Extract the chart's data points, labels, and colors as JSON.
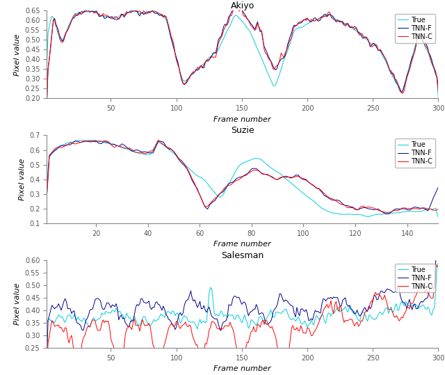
{
  "title1": "Akiyo",
  "title2": "Suzie",
  "title3": "Salesman",
  "xlabel": "Frame number",
  "ylabel": "Pixel value",
  "legend_labels": [
    "True",
    "TNN-F",
    "TNN-C"
  ],
  "colors": [
    "#00CCDD",
    "#00008B",
    "#FF0000"
  ],
  "linewidth": 0.7,
  "fig_width": 6.4,
  "fig_height": 5.39,
  "akiyo_xlim": [
    1,
    300
  ],
  "akiyo_ylim": [
    0.2,
    0.65
  ],
  "akiyo_yticks": [
    0.2,
    0.25,
    0.3,
    0.35,
    0.4,
    0.45,
    0.5,
    0.55,
    0.6,
    0.65
  ],
  "akiyo_xticks": [
    50,
    100,
    150,
    200,
    250,
    300
  ],
  "suzie_xlim": [
    1,
    152
  ],
  "suzie_ylim": [
    0.1,
    0.7
  ],
  "suzie_yticks": [
    0.1,
    0.2,
    0.3,
    0.4,
    0.5,
    0.6,
    0.7
  ],
  "suzie_xticks": [
    20,
    40,
    60,
    80,
    100,
    120,
    140
  ],
  "salesman_xlim": [
    1,
    300
  ],
  "salesman_ylim": [
    0.25,
    0.6
  ],
  "salesman_yticks": [
    0.25,
    0.3,
    0.35,
    0.4,
    0.45,
    0.5,
    0.55,
    0.6
  ],
  "salesman_xticks": [
    50,
    100,
    150,
    200,
    250,
    300
  ]
}
